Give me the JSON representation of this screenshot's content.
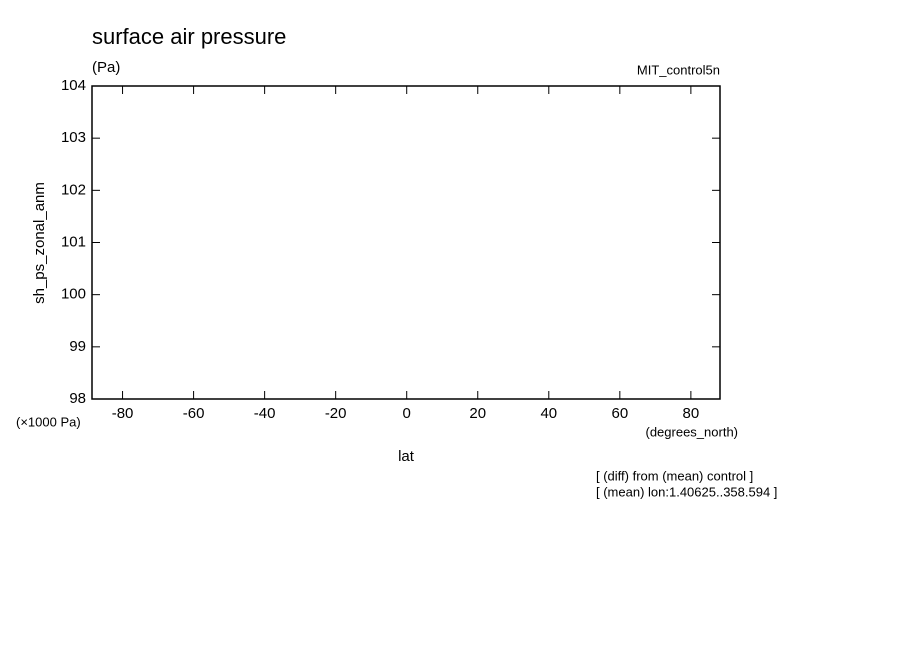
{
  "chart_data": {
    "type": "line",
    "title": "surface air pressure",
    "units": "(Pa)",
    "dataset": "MIT_control5n",
    "y_label": "sh_ps_zonal_anm",
    "y_scale_label": "(×1000 Pa)",
    "x_units": "(degrees_north)",
    "x_label": "lat",
    "notes": [
      "[ (diff) from (mean) control ]",
      "[ (mean) lon:1.40625..358.594 ]"
    ],
    "series": [],
    "xlim": [
      -88.6,
      88.2
    ],
    "xticks": [
      -80,
      -60,
      -40,
      -20,
      0,
      20,
      40,
      60,
      80
    ],
    "ylim": [
      98,
      104
    ],
    "yticks": [
      98,
      99,
      100,
      101,
      102,
      103,
      104
    ]
  }
}
